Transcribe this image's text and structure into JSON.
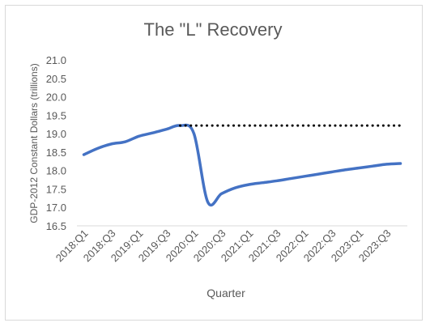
{
  "chart_data": {
    "type": "line",
    "title": "The \"L\" Recovery",
    "xlabel": "Quarter",
    "ylabel": "GDP-2012 Constant Dollars (trillions)",
    "ylim": [
      16.5,
      21.0
    ],
    "y_ticks": [
      "21.0",
      "20.5",
      "20.0",
      "19.5",
      "19.0",
      "18.5",
      "18.0",
      "17.5",
      "17.0",
      "16.5"
    ],
    "y_tick_values": [
      21.0,
      20.5,
      20.0,
      19.5,
      19.0,
      18.5,
      18.0,
      17.5,
      17.0,
      16.5
    ],
    "categories": [
      "2018:Q1",
      "2018:Q2",
      "2018:Q3",
      "2018:Q4",
      "2019:Q1",
      "2019:Q2",
      "2019:Q3",
      "2019:Q4",
      "2020:Q1",
      "2020:Q2",
      "2020:Q3",
      "2020:Q4",
      "2021:Q1",
      "2021:Q2",
      "2021:Q3",
      "2021:Q4",
      "2022:Q1",
      "2022:Q2",
      "2022:Q3",
      "2022:Q4",
      "2023:Q1",
      "2023:Q2",
      "2023:Q3",
      "2023:Q4"
    ],
    "x_tick_labels": [
      "2018:Q1",
      "2018:Q3",
      "2019:Q1",
      "2019:Q3",
      "2020:Q1",
      "2020:Q3",
      "2021:Q1",
      "2021:Q3",
      "2022:Q1",
      "2022:Q3",
      "2023:Q1",
      "2023:Q3"
    ],
    "series": [
      {
        "color": "#4472c4",
        "style": "solid",
        "values": [
          18.43,
          18.6,
          18.72,
          18.78,
          18.93,
          19.02,
          19.12,
          19.22,
          19.0,
          17.15,
          17.37,
          17.53,
          17.62,
          17.67,
          17.72,
          17.78,
          17.84,
          17.9,
          17.96,
          18.02,
          18.07,
          18.12,
          18.17,
          18.19
        ]
      },
      {
        "color": "#000000",
        "style": "dotted",
        "values": [
          null,
          null,
          null,
          null,
          null,
          null,
          null,
          19.22,
          19.22,
          19.22,
          19.22,
          19.22,
          19.22,
          19.22,
          19.22,
          19.22,
          19.22,
          19.22,
          19.22,
          19.22,
          19.22,
          19.22,
          19.22,
          19.22
        ]
      }
    ],
    "grid": false,
    "legend": "none"
  }
}
